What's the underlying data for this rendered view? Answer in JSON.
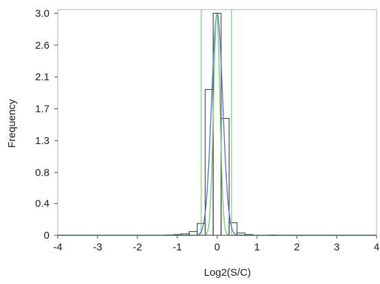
{
  "chart_data": {
    "type": "bar",
    "xlabel": "Log2(S/C)",
    "ylabel": "Frequency",
    "xlim": [
      -4,
      4
    ],
    "ylim": [
      0,
      3.05
    ],
    "x_ticks": [
      "-4",
      "-3",
      "-2",
      "-1",
      "0",
      "1",
      "2",
      "3",
      "4"
    ],
    "y_ticks": [
      {
        "value": 0,
        "label": "0"
      },
      {
        "value": 0.43,
        "label": "0.4"
      },
      {
        "value": 0.85,
        "label": "0.8"
      },
      {
        "value": 1.28,
        "label": "1.3"
      },
      {
        "value": 1.71,
        "label": "1.7"
      },
      {
        "value": 2.14,
        "label": "2.1"
      },
      {
        "value": 2.57,
        "label": "2.6"
      },
      {
        "value": 3.0,
        "label": "3.0"
      }
    ],
    "grid": false,
    "histogram": {
      "bin_width": 0.2,
      "bins": [
        {
          "x0": -1.3,
          "x1": -1.1,
          "value": 0.005
        },
        {
          "x0": -1.1,
          "x1": -0.9,
          "value": 0.01
        },
        {
          "x0": -0.9,
          "x1": -0.7,
          "value": 0.02
        },
        {
          "x0": -0.7,
          "x1": -0.5,
          "value": 0.05
        },
        {
          "x0": -0.5,
          "x1": -0.3,
          "value": 0.16
        },
        {
          "x0": -0.3,
          "x1": -0.1,
          "value": 1.97
        },
        {
          "x0": -0.1,
          "x1": 0.1,
          "value": 3.0
        },
        {
          "x0": 0.1,
          "x1": 0.3,
          "value": 1.58
        },
        {
          "x0": 0.3,
          "x1": 0.5,
          "value": 0.17
        },
        {
          "x0": 0.5,
          "x1": 0.7,
          "value": 0.03
        },
        {
          "x0": 0.7,
          "x1": 0.9,
          "value": 0.01
        },
        {
          "x0": 1.3,
          "x1": 1.5,
          "value": 0.005
        }
      ]
    },
    "fits": [
      {
        "kind": "normal",
        "mu": 0.0,
        "sigma": 0.14,
        "peak": 3.0,
        "color": "#5b6fd6"
      },
      {
        "kind": "normal",
        "mu": -0.01,
        "sigma": 0.08,
        "peak": 3.0,
        "color": "#6fcf6f"
      }
    ],
    "vertical_lines": [
      {
        "x": -0.4,
        "color": "#6fcf6f"
      },
      {
        "x": 0.36,
        "color": "#6fcf6f"
      }
    ],
    "colors": {
      "histogram": "#3a3a3a",
      "frame": "#b0b0b0",
      "axis": "#444444"
    }
  }
}
